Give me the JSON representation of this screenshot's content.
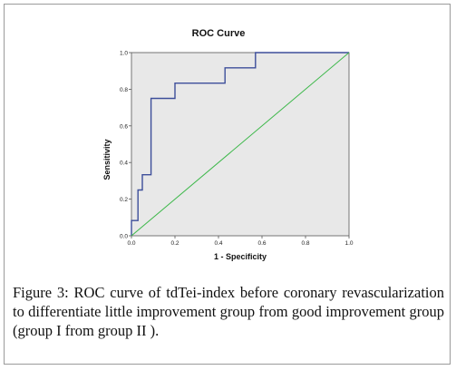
{
  "chart_data": {
    "type": "line",
    "title": "ROC Curve",
    "xlabel": "1 - Specificity",
    "ylabel": "Sensitivity",
    "xlim": [
      0.0,
      1.0
    ],
    "ylim": [
      0.0,
      1.0
    ],
    "x_ticks": [
      "0.0",
      "0.2",
      "0.4",
      "0.6",
      "0.8",
      "1.0"
    ],
    "y_ticks": [
      "0.0",
      "0.2",
      "0.4",
      "0.6",
      "0.8",
      "1.0"
    ],
    "grid": false,
    "series": [
      {
        "color": "#3d4e9a",
        "x": [
          0.0,
          0.0,
          0.0,
          0.0,
          0.03,
          0.03,
          0.04,
          0.04,
          0.05,
          0.05,
          0.08,
          0.08,
          0.09,
          0.09,
          0.2,
          0.2,
          0.43,
          0.43,
          0.57,
          0.57,
          1.0
        ],
        "y": [
          0.0,
          0.0,
          0.0,
          0.083,
          0.083,
          0.25,
          0.25,
          0.25,
          0.25,
          0.333,
          0.333,
          0.333,
          0.333,
          0.75,
          0.75,
          0.833,
          0.833,
          0.917,
          0.917,
          1.0,
          1.0
        ]
      },
      {
        "color": "#3db84a",
        "x": [
          0.0,
          1.0
        ],
        "y": [
          0.0,
          1.0
        ]
      }
    ],
    "plot_background": "#e8e8e8"
  },
  "caption": {
    "label": "Figure 3:",
    "text": "ROC curve of tdTei-index before coronary revascularization to differentiate little improvement group from good improvement group (group I from group II )."
  }
}
